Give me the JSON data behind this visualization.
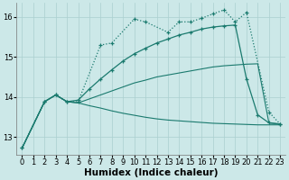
{
  "bg_color": "#cce8e8",
  "line_color": "#1a7a6e",
  "grid_color": "#aacfcf",
  "xlabel": "Humidex (Indice chaleur)",
  "xlabel_fontsize": 7.5,
  "tick_fontsize": 6,
  "ylim": [
    12.55,
    16.35
  ],
  "xlim": [
    -0.5,
    23.5
  ],
  "yticks": [
    13,
    14,
    15,
    16
  ],
  "xticks": [
    0,
    1,
    2,
    3,
    4,
    5,
    6,
    7,
    8,
    9,
    10,
    11,
    12,
    13,
    14,
    15,
    16,
    17,
    18,
    19,
    20,
    21,
    22,
    23
  ],
  "line1_x": [
    0,
    2,
    3,
    4,
    5,
    7,
    8,
    10,
    11,
    13,
    14,
    15,
    16,
    17,
    18,
    19,
    20,
    22,
    23
  ],
  "line1_y": [
    12.72,
    13.88,
    14.05,
    13.88,
    13.88,
    15.3,
    15.35,
    15.95,
    15.88,
    15.62,
    15.88,
    15.88,
    15.97,
    16.08,
    16.18,
    15.88,
    16.12,
    13.62,
    13.32
  ],
  "line2_x": [
    0,
    2,
    3,
    4,
    5,
    6,
    7,
    8,
    9,
    10,
    11,
    12,
    13,
    14,
    15,
    16,
    17,
    18,
    19,
    20,
    21,
    22,
    23
  ],
  "line2_y": [
    12.72,
    13.88,
    14.05,
    13.88,
    13.92,
    14.2,
    14.45,
    14.68,
    14.9,
    15.08,
    15.22,
    15.35,
    15.45,
    15.55,
    15.62,
    15.7,
    15.75,
    15.78,
    15.8,
    14.45,
    13.55,
    13.35,
    13.32
  ],
  "line3_x": [
    0,
    2,
    3,
    4,
    5,
    6,
    7,
    8,
    9,
    10,
    11,
    12,
    13,
    14,
    15,
    16,
    17,
    18,
    19,
    20,
    21,
    22,
    23
  ],
  "line3_y": [
    12.72,
    13.88,
    14.05,
    13.88,
    13.85,
    13.95,
    14.05,
    14.15,
    14.25,
    14.35,
    14.42,
    14.5,
    14.55,
    14.6,
    14.65,
    14.7,
    14.75,
    14.78,
    14.8,
    14.82,
    14.83,
    13.35,
    13.32
  ],
  "line4_x": [
    0,
    2,
    3,
    4,
    5,
    6,
    7,
    8,
    9,
    10,
    11,
    12,
    13,
    14,
    15,
    16,
    17,
    18,
    19,
    20,
    21,
    22,
    23
  ],
  "line4_y": [
    12.72,
    13.88,
    14.05,
    13.88,
    13.85,
    13.78,
    13.72,
    13.65,
    13.59,
    13.54,
    13.49,
    13.45,
    13.42,
    13.4,
    13.38,
    13.36,
    13.34,
    13.33,
    13.32,
    13.31,
    13.3,
    13.3,
    13.3
  ]
}
